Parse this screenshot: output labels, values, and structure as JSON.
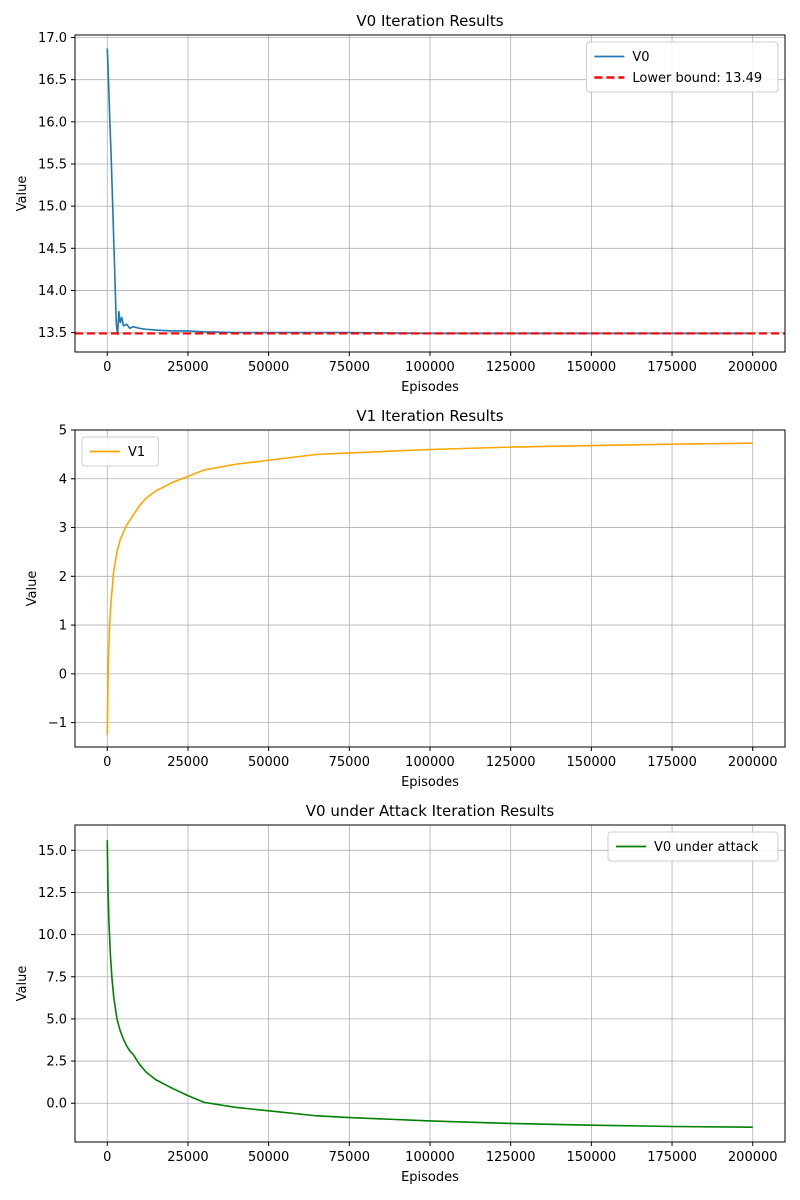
{
  "chart_data": [
    {
      "type": "line",
      "title": "V0 Iteration Results",
      "xlabel": "Episodes",
      "ylabel": "Value",
      "xlim": [
        -10000,
        210000
      ],
      "ylim": [
        13.27,
        17.03
      ],
      "xticks": [
        0,
        25000,
        50000,
        75000,
        100000,
        125000,
        150000,
        175000,
        200000
      ],
      "yticks": [
        13.5,
        14.0,
        14.5,
        15.0,
        15.5,
        16.0,
        16.5,
        17.0
      ],
      "ytick_labels": [
        "13.5",
        "14.0",
        "14.5",
        "15.0",
        "15.5",
        "16.0",
        "16.5",
        "17.0"
      ],
      "grid": true,
      "legend": "upper-right",
      "series": [
        {
          "name": "V0",
          "color": "#1f77b4",
          "x": [
            0,
            200,
            500,
            800,
            1200,
            1600,
            2000,
            2400,
            2800,
            3200,
            3600,
            4000,
            4500,
            5000,
            6000,
            7000,
            8000,
            10000,
            12000,
            15000,
            20000,
            25000,
            30000,
            40000,
            50000,
            75000,
            100000,
            125000,
            150000,
            175000,
            200000
          ],
          "y": [
            16.87,
            16.7,
            16.35,
            16.0,
            15.6,
            15.1,
            14.6,
            14.1,
            13.6,
            13.48,
            13.75,
            13.62,
            13.68,
            13.58,
            13.6,
            13.55,
            13.57,
            13.55,
            13.54,
            13.53,
            13.52,
            13.52,
            13.51,
            13.5,
            13.5,
            13.5,
            13.49,
            13.49,
            13.49,
            13.49,
            13.49
          ]
        },
        {
          "name": "Lower bound: 13.49",
          "color": "#ff0000",
          "dashed": true,
          "x": [
            -10000,
            210000
          ],
          "y": [
            13.49,
            13.49
          ]
        }
      ]
    },
    {
      "type": "line",
      "title": "V1 Iteration Results",
      "xlabel": "Episodes",
      "ylabel": "Value",
      "xlim": [
        -10000,
        210000
      ],
      "ylim": [
        -1.5,
        5.0
      ],
      "xticks": [
        0,
        25000,
        50000,
        75000,
        100000,
        125000,
        150000,
        175000,
        200000
      ],
      "yticks": [
        -1,
        0,
        1,
        2,
        3,
        4,
        5
      ],
      "ytick_labels": [
        "−1",
        "0",
        "1",
        "2",
        "3",
        "4",
        "5"
      ],
      "grid": true,
      "legend": "upper-left",
      "series": [
        {
          "name": "V1",
          "color": "#ffa500",
          "x": [
            0,
            300,
            700,
            1200,
            2000,
            3000,
            4000,
            5000,
            6000,
            8000,
            10000,
            12000,
            15000,
            18000,
            20000,
            25000,
            30000,
            40000,
            50000,
            65000,
            75000,
            100000,
            125000,
            150000,
            175000,
            200000
          ],
          "y": [
            -1.25,
            0.2,
            1.0,
            1.5,
            2.1,
            2.5,
            2.75,
            2.9,
            3.05,
            3.25,
            3.45,
            3.6,
            3.75,
            3.85,
            3.92,
            4.05,
            4.18,
            4.3,
            4.38,
            4.5,
            4.53,
            4.6,
            4.65,
            4.68,
            4.71,
            4.73
          ]
        }
      ]
    },
    {
      "type": "line",
      "title": "V0 under Attack Iteration Results",
      "xlabel": "Episodes",
      "ylabel": "Value",
      "xlim": [
        -10000,
        210000
      ],
      "ylim": [
        -2.3,
        16.5
      ],
      "xticks": [
        0,
        25000,
        50000,
        75000,
        100000,
        125000,
        150000,
        175000,
        200000
      ],
      "yticks": [
        0.0,
        2.5,
        5.0,
        7.5,
        10.0,
        12.5,
        15.0
      ],
      "ytick_labels": [
        "0.0",
        "2.5",
        "5.0",
        "7.5",
        "10.0",
        "12.5",
        "15.0"
      ],
      "grid": true,
      "legend": "upper-right",
      "series": [
        {
          "name": "V0 under attack",
          "color": "#008000",
          "x": [
            0,
            200,
            500,
            1000,
            1500,
            2000,
            3000,
            4000,
            5000,
            6000,
            7000,
            8000,
            10000,
            12000,
            15000,
            20000,
            25000,
            30000,
            40000,
            50000,
            65000,
            75000,
            100000,
            125000,
            150000,
            175000,
            200000
          ],
          "y": [
            15.6,
            13.0,
            10.8,
            8.7,
            7.3,
            6.3,
            5.0,
            4.3,
            3.8,
            3.4,
            3.1,
            2.9,
            2.3,
            1.85,
            1.4,
            0.9,
            0.45,
            0.05,
            -0.25,
            -0.45,
            -0.75,
            -0.85,
            -1.05,
            -1.2,
            -1.3,
            -1.38,
            -1.42
          ]
        }
      ]
    }
  ]
}
